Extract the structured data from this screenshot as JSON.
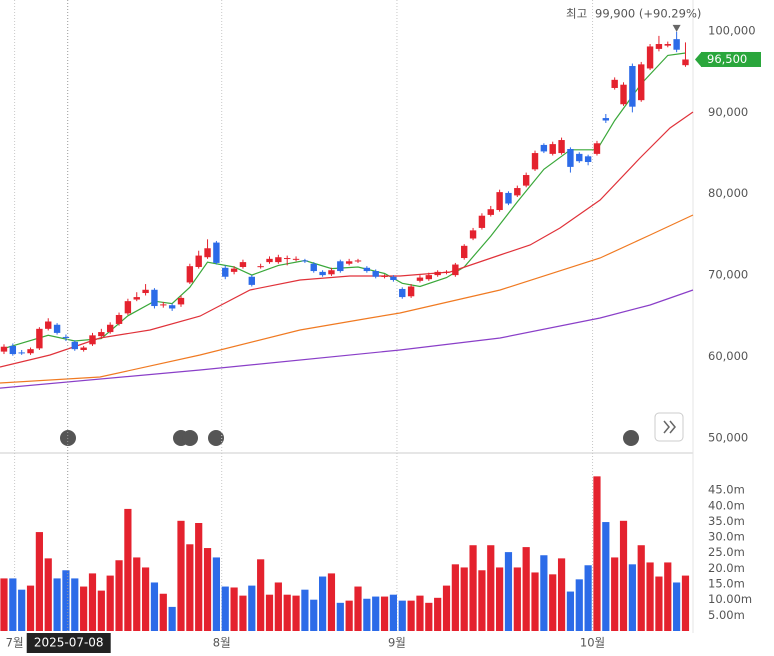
{
  "chart_data": {
    "type": "candlestick",
    "xlim": [
      -0.45,
      77.85
    ],
    "xticks": [
      {
        "value": 1.2,
        "label": "7월"
      },
      {
        "value": 24.6,
        "label": "8월"
      },
      {
        "value": 44.4,
        "label": "9월"
      },
      {
        "value": 66.5,
        "label": "10월"
      }
    ],
    "crosshair": {
      "value": 7.2,
      "label": "2025-07-08"
    },
    "ylim": [
      48140,
      103810
    ],
    "yticks": [
      {
        "value": 50000,
        "label": "50,000"
      },
      {
        "value": 60000,
        "label": "60,000"
      },
      {
        "value": 70000,
        "label": "70,000"
      },
      {
        "value": 80000,
        "label": "80,000"
      },
      {
        "value": 90000,
        "label": "90,000"
      },
      {
        "value": 100000,
        "label": "100,000"
      }
    ],
    "up_color": "#e4222e",
    "down_color": "#2c6be8",
    "open": [
      60600,
      61300,
      60500,
      60400,
      61000,
      63400,
      63900,
      62400,
      61800,
      60800,
      61500,
      62500,
      63000,
      64000,
      65300,
      67000,
      67800,
      68200,
      66300,
      66300,
      66400,
      69100,
      71000,
      72200,
      74000,
      70900,
      70400,
      71000,
      69800,
      71000,
      71600,
      71600,
      72000,
      71900,
      71800,
      71400,
      70400,
      70100,
      71700,
      71400,
      71700,
      70900,
      70500,
      69800,
      69800,
      68300,
      67400,
      69300,
      69500,
      70000,
      70300,
      70000,
      72100,
      74500,
      75800,
      77400,
      78000,
      80100,
      79800,
      81000,
      83000,
      86000,
      84900,
      85000,
      85500,
      84900,
      84600,
      84900,
      89300,
      93000,
      91000,
      95700,
      91500,
      95400,
      97800,
      98200,
      99000,
      95800
    ],
    "high": [
      61500,
      61600,
      60800,
      61100,
      63600,
      64700,
      64100,
      62700,
      62000,
      61300,
      62900,
      63400,
      64200,
      65400,
      67100,
      67900,
      68900,
      68400,
      66700,
      66500,
      67500,
      71400,
      73000,
      74400,
      74200,
      71200,
      71100,
      71900,
      70000,
      71400,
      72300,
      72500,
      72400,
      72300,
      72000,
      71600,
      70600,
      70900,
      71900,
      72000,
      72000,
      71100,
      70700,
      70100,
      70000,
      68500,
      68900,
      70000,
      70300,
      70600,
      70600,
      71500,
      73800,
      75800,
      77600,
      78500,
      80500,
      80300,
      81000,
      82600,
      85300,
      86200,
      86400,
      86900,
      85700,
      85100,
      84800,
      86500,
      89800,
      94300,
      93700,
      96000,
      96200,
      98400,
      99400,
      98700,
      99900,
      98600
    ],
    "low": [
      60300,
      60100,
      60200,
      60200,
      60800,
      63200,
      62700,
      61900,
      60700,
      60600,
      61300,
      62200,
      62800,
      63800,
      65100,
      66800,
      67500,
      65900,
      66000,
      65600,
      66100,
      68900,
      70800,
      72000,
      71300,
      69500,
      70100,
      70800,
      68600,
      70800,
      71400,
      71400,
      71200,
      71700,
      71500,
      70300,
      69800,
      69900,
      70300,
      71200,
      71500,
      70300,
      69600,
      69600,
      69200,
      67100,
      67200,
      69100,
      69300,
      69800,
      70100,
      69800,
      71900,
      74300,
      75600,
      77200,
      77800,
      78600,
      79600,
      80800,
      82800,
      85000,
      84700,
      84800,
      82600,
      83800,
      83500,
      84700,
      88700,
      92800,
      90800,
      90000,
      91300,
      95200,
      97500,
      98000,
      97400,
      95600
    ],
    "close": [
      61200,
      60300,
      60400,
      60900,
      63400,
      64300,
      62900,
      62300,
      60900,
      61100,
      62600,
      63000,
      63900,
      65100,
      66800,
      67300,
      68200,
      66200,
      66400,
      65900,
      67200,
      71100,
      72400,
      73300,
      71500,
      69800,
      70800,
      71600,
      68800,
      71100,
      72000,
      72200,
      72100,
      72000,
      71700,
      70500,
      70000,
      70600,
      70500,
      71700,
      71800,
      70500,
      69800,
      69900,
      69400,
      67300,
      68600,
      69700,
      70000,
      70400,
      70400,
      71300,
      73600,
      75500,
      77300,
      78100,
      80200,
      78800,
      80700,
      82300,
      85000,
      85200,
      86100,
      86600,
      83300,
      84000,
      83900,
      86200,
      89000,
      94000,
      93400,
      90700,
      95900,
      98100,
      98400,
      98400,
      97700,
      96500
    ],
    "moving_averages": [
      {
        "color": "#3aa83a",
        "x": [
          0,
          5,
          8,
          11,
          14,
          17,
          19,
          21,
          23,
          26,
          28,
          31,
          34,
          37,
          40,
          43,
          45,
          47,
          50,
          52,
          55,
          58,
          61,
          64,
          67,
          69,
          72,
          75,
          77
        ],
        "values": [
          61000,
          62600,
          61900,
          62200,
          65000,
          66800,
          66500,
          68500,
          71600,
          71000,
          70000,
          71200,
          71800,
          70800,
          71000,
          70200,
          69000,
          68600,
          69700,
          71000,
          74800,
          79000,
          83000,
          85400,
          85400,
          89000,
          93500,
          97000,
          97300
        ]
      },
      {
        "color": "#e0323a",
        "x": [
          -0.45,
          5.2,
          10.85,
          16.5,
          22.15,
          27.8,
          33.45,
          39.1,
          44.75,
          50.4,
          56.05,
          59.44,
          62.82,
          67.35,
          71.86,
          75.25,
          77.85
        ],
        "values": [
          58706,
          60180,
          62270,
          63250,
          64970,
          68170,
          69400,
          69890,
          69890,
          70380,
          72470,
          73700,
          75790,
          79230,
          84390,
          88080,
          90040
        ]
      },
      {
        "color": "#f07a22",
        "x": [
          -0.45,
          10.85,
          22.15,
          33.45,
          41.36,
          44.75,
          56.05,
          67.35,
          73.0,
          77.85
        ],
        "values": [
          56740,
          57480,
          60180,
          63250,
          64730,
          65340,
          68170,
          72100,
          74930,
          77390
        ]
      },
      {
        "color": "#8a3fc8",
        "x": [
          -0.45,
          22.15,
          44.75,
          56.05,
          67.35,
          73.0,
          77.85
        ],
        "values": [
          56120,
          58340,
          60800,
          62270,
          64730,
          66330,
          68170
        ]
      }
    ],
    "high_marker": {
      "label": "최고",
      "value": 99900,
      "value_label": "99,900 (+90.29%)",
      "index": 76
    },
    "current_price": {
      "value": 96500,
      "label": "96,500",
      "color": "#2aa63c"
    },
    "volume": {
      "ylim": [
        0,
        57.5
      ],
      "yticks": [
        {
          "value": 5,
          "label": "5.00m"
        },
        {
          "value": 10,
          "label": "10.00m"
        },
        {
          "value": 15,
          "label": "15.0m"
        },
        {
          "value": 20,
          "label": "20.0m"
        },
        {
          "value": 25,
          "label": "25.0m"
        },
        {
          "value": 30,
          "label": "30.0m"
        },
        {
          "value": 35,
          "label": "35.0m"
        },
        {
          "value": 40,
          "label": "40.0m"
        },
        {
          "value": 45,
          "label": "45.0m"
        }
      ],
      "values": [
        16.8,
        16.8,
        13.2,
        14.5,
        31.6,
        23.2,
        16.8,
        19.4,
        16.8,
        14.2,
        18.4,
        12.9,
        17.7,
        22.6,
        39,
        23.5,
        20.3,
        15.5,
        11.9,
        7.7,
        35.2,
        27.7,
        34.5,
        26.5,
        23.5,
        14.2,
        13.9,
        11.3,
        14.5,
        22.9,
        11.6,
        15.5,
        11.6,
        11.3,
        13.2,
        10,
        17.4,
        18.4,
        9,
        9.7,
        14.2,
        10.3,
        11,
        11,
        11.6,
        9.7,
        9.7,
        11.3,
        9,
        10.6,
        14.5,
        21.3,
        20.3,
        27.4,
        19.4,
        27.4,
        20.3,
        25.2,
        20.3,
        26.8,
        18.7,
        24.2,
        18.1,
        23.2,
        12.6,
        16.5,
        21,
        49.4,
        34.8,
        23.5,
        35.2,
        21.3,
        27.4,
        21.9,
        17.4,
        21.9,
        15.5,
        17.7
      ]
    }
  }
}
